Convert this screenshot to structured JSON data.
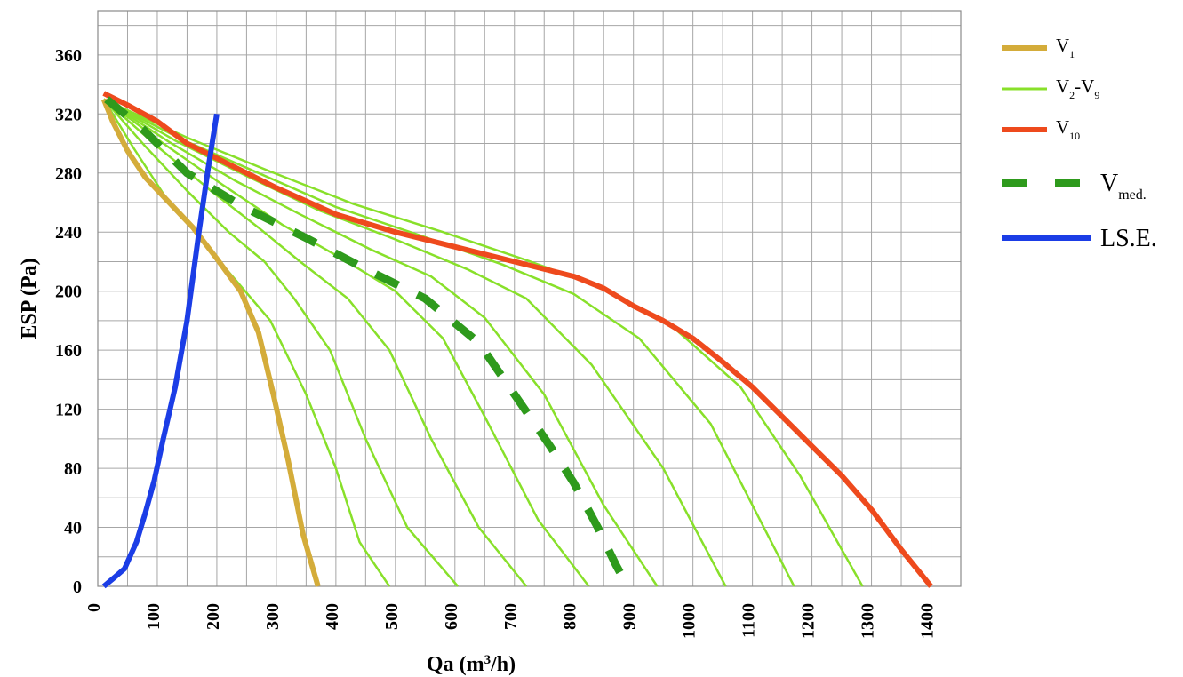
{
  "chart_data": {
    "type": "line",
    "title": "",
    "xlabel": {
      "main": "Qa (m",
      "sup": "3",
      "tail": "/h)"
    },
    "ylabel": "ESP (Pa)",
    "xlim": [
      0,
      1450
    ],
    "ylim": [
      0,
      390
    ],
    "grid": true,
    "legend_placement": "right",
    "x_ticks": [
      0,
      100,
      200,
      300,
      400,
      500,
      600,
      700,
      800,
      900,
      1000,
      1100,
      1200,
      1300,
      1400
    ],
    "y_ticks": [
      0,
      40,
      80,
      120,
      160,
      200,
      240,
      280,
      320,
      360
    ],
    "colors": {
      "v1": "#d4ac3a",
      "v2_v9": "#88e02a",
      "v10": "#ee4a1d",
      "vmed": "#2e9a1c",
      "lse": "#1b3de6",
      "grid": "#a6a6a6"
    },
    "legend": [
      {
        "key": "v1",
        "main": "V",
        "sub": "1",
        "tail": "",
        "tail_sub": ""
      },
      {
        "key": "v2_v9",
        "main": "V",
        "sub": "2",
        "tail": "-V",
        "tail_sub": "9"
      },
      {
        "key": "v10",
        "main": "V",
        "sub": "10",
        "tail": "",
        "tail_sub": ""
      },
      {
        "key": "vmed",
        "main": "V",
        "sub": "med.",
        "tail": "",
        "tail_sub": ""
      },
      {
        "key": "lse",
        "main": "LS.E.",
        "sub": "",
        "tail": "",
        "tail_sub": ""
      }
    ],
    "series": [
      {
        "key": "v1",
        "name": "V1",
        "points": [
          [
            10,
            330
          ],
          [
            25,
            315
          ],
          [
            50,
            295
          ],
          [
            80,
            277
          ],
          [
            120,
            260
          ],
          [
            160,
            243
          ],
          [
            200,
            222
          ],
          [
            240,
            200
          ],
          [
            270,
            172
          ],
          [
            295,
            130
          ],
          [
            320,
            85
          ],
          [
            345,
            35
          ],
          [
            370,
            0
          ]
        ]
      },
      {
        "key": "v2_v9",
        "group": true,
        "points": [
          [
            10,
            330
          ],
          [
            60,
            297
          ],
          [
            110,
            266
          ],
          [
            170,
            237
          ],
          [
            220,
            213
          ],
          [
            290,
            180
          ],
          [
            350,
            130
          ],
          [
            400,
            80
          ],
          [
            440,
            30
          ],
          [
            490,
            0
          ]
        ]
      },
      {
        "key": "v2_v9",
        "group": true,
        "points": [
          [
            10,
            330
          ],
          [
            80,
            298
          ],
          [
            150,
            268
          ],
          [
            220,
            240
          ],
          [
            280,
            220
          ],
          [
            330,
            195
          ],
          [
            390,
            160
          ],
          [
            450,
            100
          ],
          [
            520,
            40
          ],
          [
            605,
            0
          ]
        ]
      },
      {
        "key": "v2_v9",
        "group": true,
        "points": [
          [
            10,
            330
          ],
          [
            100,
            298
          ],
          [
            190,
            268
          ],
          [
            270,
            243
          ],
          [
            340,
            220
          ],
          [
            420,
            195
          ],
          [
            490,
            160
          ],
          [
            560,
            100
          ],
          [
            640,
            40
          ],
          [
            720,
            0
          ]
        ]
      },
      {
        "key": "v2_v9",
        "group": true,
        "points": [
          [
            10,
            330
          ],
          [
            110,
            300
          ],
          [
            210,
            272
          ],
          [
            310,
            245
          ],
          [
            410,
            222
          ],
          [
            500,
            200
          ],
          [
            580,
            168
          ],
          [
            650,
            115
          ],
          [
            740,
            45
          ],
          [
            825,
            0
          ]
        ]
      },
      {
        "key": "v2_v9",
        "group": true,
        "points": [
          [
            10,
            330
          ],
          [
            120,
            301
          ],
          [
            230,
            275
          ],
          [
            340,
            252
          ],
          [
            460,
            228
          ],
          [
            560,
            210
          ],
          [
            650,
            182
          ],
          [
            750,
            130
          ],
          [
            850,
            55
          ],
          [
            940,
            0
          ]
        ]
      },
      {
        "key": "v2_v9",
        "group": true,
        "points": [
          [
            10,
            330
          ],
          [
            130,
            302
          ],
          [
            250,
            278
          ],
          [
            370,
            255
          ],
          [
            500,
            235
          ],
          [
            620,
            215
          ],
          [
            720,
            195
          ],
          [
            830,
            150
          ],
          [
            950,
            80
          ],
          [
            1055,
            0
          ]
        ]
      },
      {
        "key": "v2_v9",
        "group": true,
        "points": [
          [
            10,
            330
          ],
          [
            140,
            303
          ],
          [
            270,
            280
          ],
          [
            400,
            257
          ],
          [
            540,
            238
          ],
          [
            680,
            218
          ],
          [
            800,
            198
          ],
          [
            910,
            168
          ],
          [
            1030,
            110
          ],
          [
            1170,
            0
          ]
        ]
      },
      {
        "key": "v2_v9",
        "group": true,
        "points": [
          [
            10,
            330
          ],
          [
            150,
            304
          ],
          [
            290,
            281
          ],
          [
            430,
            259
          ],
          [
            580,
            240
          ],
          [
            720,
            221
          ],
          [
            850,
            202
          ],
          [
            960,
            178
          ],
          [
            1080,
            135
          ],
          [
            1180,
            75
          ],
          [
            1285,
            0
          ]
        ]
      },
      {
        "key": "v10",
        "name": "V10",
        "points": [
          [
            10,
            334
          ],
          [
            50,
            326
          ],
          [
            100,
            315
          ],
          [
            150,
            300
          ],
          [
            200,
            290
          ],
          [
            250,
            280
          ],
          [
            300,
            270
          ],
          [
            400,
            252
          ],
          [
            500,
            240
          ],
          [
            600,
            230
          ],
          [
            700,
            220
          ],
          [
            800,
            210
          ],
          [
            850,
            202
          ],
          [
            900,
            190
          ],
          [
            950,
            180
          ],
          [
            1000,
            168
          ],
          [
            1050,
            152
          ],
          [
            1100,
            135
          ],
          [
            1150,
            115
          ],
          [
            1200,
            95
          ],
          [
            1250,
            75
          ],
          [
            1300,
            52
          ],
          [
            1350,
            25
          ],
          [
            1400,
            0
          ]
        ]
      },
      {
        "key": "vmed",
        "name": "Vmed.",
        "dashed": true,
        "points": [
          [
            15,
            330
          ],
          [
            75,
            310
          ],
          [
            150,
            280
          ],
          [
            240,
            258
          ],
          [
            350,
            236
          ],
          [
            450,
            215
          ],
          [
            550,
            195
          ],
          [
            640,
            165
          ],
          [
            700,
            130
          ],
          [
            760,
            95
          ],
          [
            800,
            70
          ],
          [
            840,
            40
          ],
          [
            870,
            15
          ],
          [
            890,
            0
          ]
        ]
      },
      {
        "key": "lse",
        "name": "LS.E.",
        "points": [
          [
            10,
            0
          ],
          [
            25,
            5
          ],
          [
            45,
            12
          ],
          [
            65,
            30
          ],
          [
            80,
            50
          ],
          [
            95,
            72
          ],
          [
            110,
            100
          ],
          [
            130,
            135
          ],
          [
            150,
            180
          ],
          [
            170,
            240
          ],
          [
            185,
            282
          ],
          [
            200,
            320
          ]
        ]
      }
    ]
  }
}
